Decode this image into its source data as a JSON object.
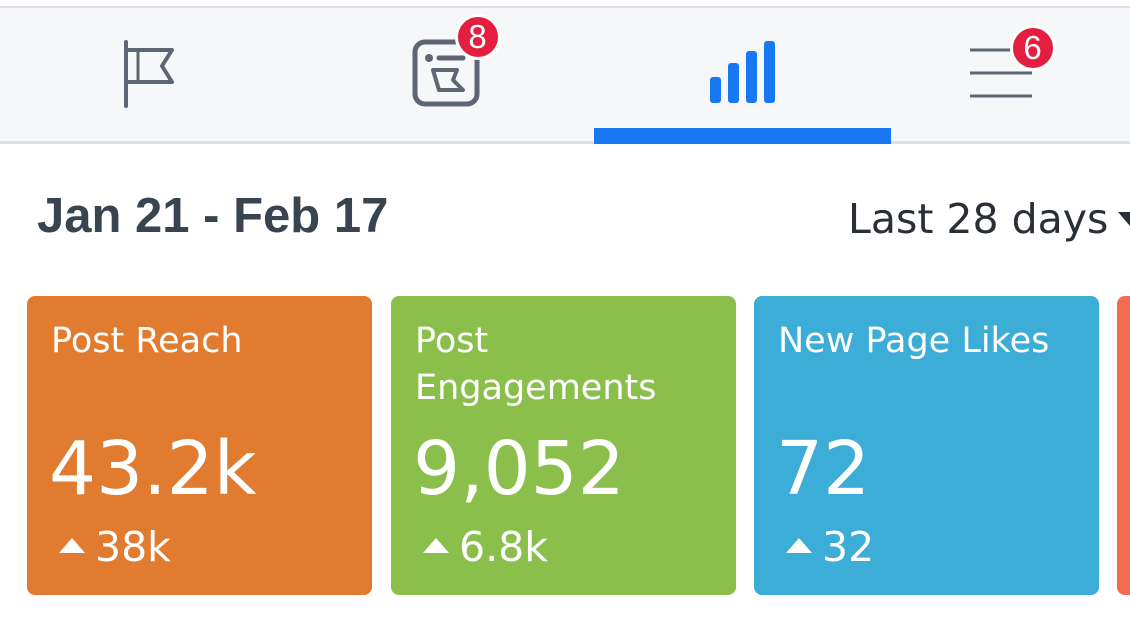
{
  "colors": {
    "accent": "#1877f2",
    "badge": "#e41e3f",
    "icon_gray": "#5e6673",
    "post_reach": "#e07b2f",
    "post_engagements": "#8bbf4c",
    "new_page_likes": "#3badd6",
    "peek_card": "#f26b4f"
  },
  "tabs": [
    {
      "icon": "flag-icon",
      "badge": ""
    },
    {
      "icon": "page-flag-icon",
      "badge": "8"
    },
    {
      "icon": "bar-chart-icon",
      "badge": "",
      "active": true
    },
    {
      "icon": "menu-icon",
      "badge": "6"
    }
  ],
  "header": {
    "date_range": "Jan 21 - Feb 17",
    "period_select": "Last 28 days"
  },
  "cards": [
    {
      "title": "Post Reach",
      "value": "43.2k",
      "delta": "38k"
    },
    {
      "title": "Post\nEngagements",
      "value": "9,052",
      "delta": "6.8k"
    },
    {
      "title": "New Page Likes",
      "value": "72",
      "delta": "32"
    }
  ]
}
